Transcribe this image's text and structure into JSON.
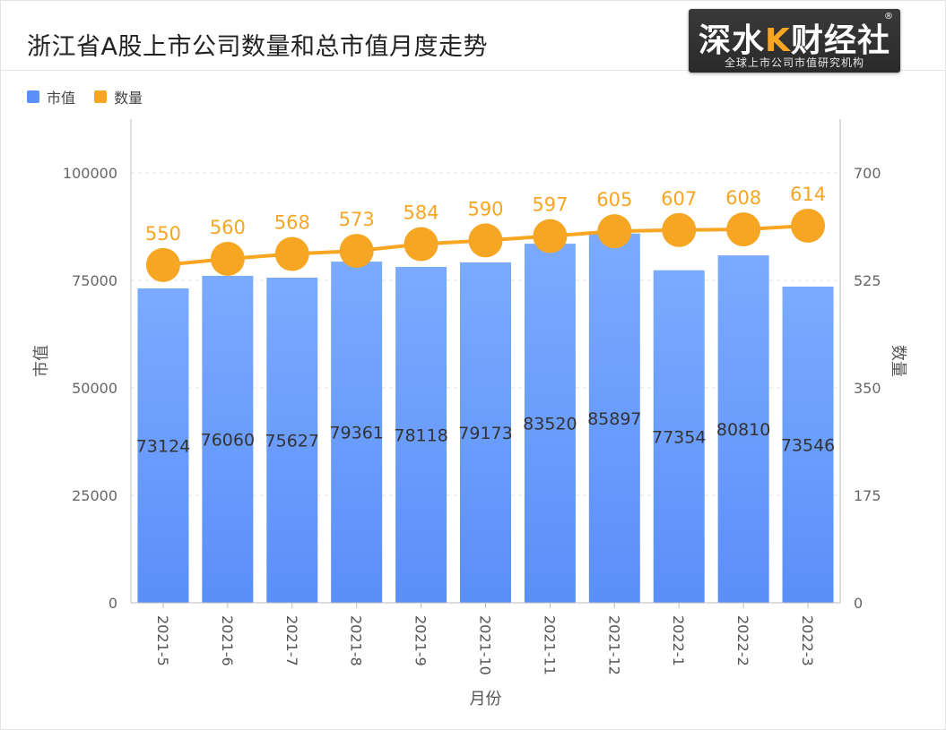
{
  "title": "浙江省A股上市公司数量和总市值月度走势",
  "logo": {
    "brand_prefix": "深水",
    "brand_k": "K",
    "brand_suffix": "财经社",
    "registered": "®",
    "tagline": "全球上市公司市值研究机构"
  },
  "legend": [
    {
      "label": "市值",
      "color": "#5b8ff9"
    },
    {
      "label": "数量",
      "color": "#f6a623"
    }
  ],
  "chart_data": {
    "type": "bar",
    "title": "浙江省A股上市公司数量和总市值月度走势",
    "categories": [
      "2021-5",
      "2021-6",
      "2021-7",
      "2021-8",
      "2021-9",
      "2021-10",
      "2021-11",
      "2021-12",
      "2022-1",
      "2022-2",
      "2022-3"
    ],
    "series": [
      {
        "name": "市值",
        "type": "bar",
        "axis": "left",
        "color": "#5b8ff9",
        "values": [
          73124,
          76060,
          75627,
          79361,
          78118,
          79173,
          83520,
          85897,
          77354,
          80810,
          73546
        ]
      },
      {
        "name": "数量",
        "type": "line",
        "axis": "right",
        "color": "#f6a623",
        "values": [
          550,
          560,
          568,
          573,
          584,
          590,
          597,
          605,
          607,
          608,
          614
        ]
      }
    ],
    "xlabel": "月份",
    "ylabel": "市值",
    "y2label": "数量",
    "ylim": [
      0,
      112500
    ],
    "y2lim": [
      0,
      787.5
    ],
    "yticks": [
      0,
      25000,
      50000,
      75000,
      100000
    ],
    "y2ticks": [
      0,
      175,
      350,
      525,
      700
    ],
    "grid": true,
    "legend_position": "top-left"
  }
}
